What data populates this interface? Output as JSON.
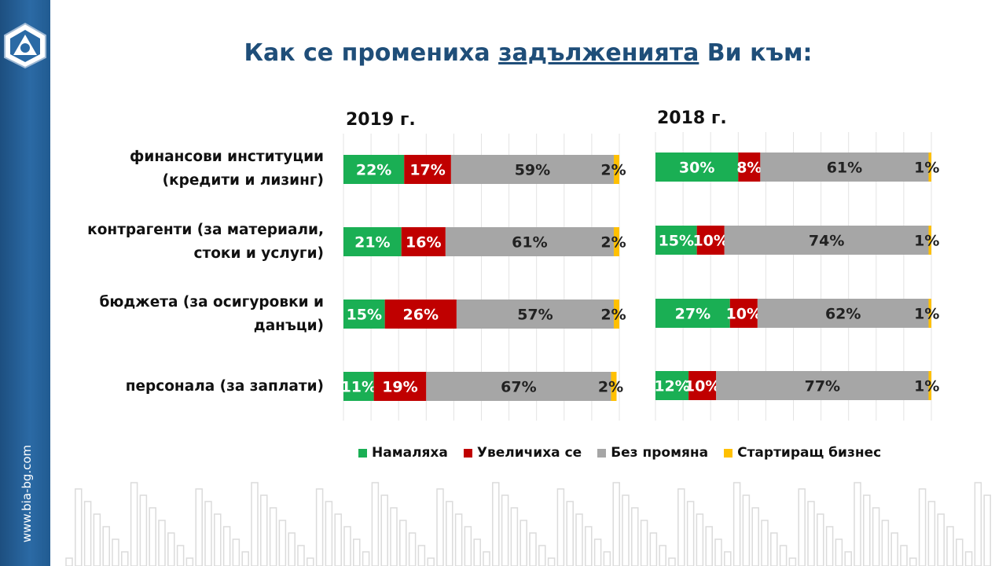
{
  "title": {
    "pre": "Как се промениха ",
    "underlined": "задълженията",
    "post": " Ви към:"
  },
  "site": "www.bia-bg.com",
  "chart_data": [
    {
      "type": "bar",
      "stacked": true,
      "orientation": "horizontal",
      "title": "2019 г.",
      "categories": [
        "финансови институции (кредити и лизинг)",
        "контрагенти (за материали, стоки и услуги)",
        "бюджета (за осигуровки и данъци)",
        "персонала (за заплати)"
      ],
      "series": [
        {
          "name": "Намаляха",
          "color": "#1aaf54",
          "values": [
            22,
            21,
            15,
            11
          ],
          "labels": [
            "22%",
            "21%",
            "15%",
            "11%"
          ]
        },
        {
          "name": "Увеличиха се",
          "color": "#c00000",
          "values": [
            17,
            16,
            26,
            19
          ],
          "labels": [
            "17%",
            "16%",
            "26%",
            "19%"
          ]
        },
        {
          "name": "Без промяна",
          "color": "#a6a6a6",
          "values": [
            59,
            61,
            57,
            67
          ],
          "labels": [
            "59%",
            "61%",
            "57%",
            "67%"
          ]
        },
        {
          "name": "Стартиращ бизнес",
          "color": "#ffc000",
          "values": [
            2,
            2,
            2,
            2
          ],
          "labels": [
            "2%",
            "2%",
            "2%",
            "2%"
          ]
        }
      ],
      "xlim": [
        0,
        100
      ],
      "grid": true
    },
    {
      "type": "bar",
      "stacked": true,
      "orientation": "horizontal",
      "title": "2018 г.",
      "categories": [
        "финансови институции (кредити и лизинг)",
        "контрагенти (за материали, стоки и услуги)",
        "бюджета (за осигуровки и данъци)",
        "персонала (за заплати)"
      ],
      "series": [
        {
          "name": "Намаляха",
          "color": "#1aaf54",
          "values": [
            30,
            15,
            27,
            12
          ],
          "labels": [
            "30%",
            "15%",
            "27%",
            "12%"
          ]
        },
        {
          "name": "Увеличиха се",
          "color": "#c00000",
          "values": [
            8,
            10,
            10,
            10
          ],
          "labels": [
            "8%",
            "10%",
            "10%",
            "10%"
          ]
        },
        {
          "name": "Без промяна",
          "color": "#a6a6a6",
          "values": [
            61,
            74,
            62,
            77
          ],
          "labels": [
            "61%",
            "74%",
            "62%",
            "77%"
          ]
        },
        {
          "name": "Стартиращ бизнес",
          "color": "#ffc000",
          "values": [
            1,
            1,
            1,
            1
          ],
          "labels": [
            "1%",
            "1%",
            "1%",
            "1%"
          ]
        }
      ],
      "xlim": [
        0,
        100
      ],
      "grid": true
    }
  ],
  "category_lines": [
    [
      "финансови институции",
      "(кредити и лизинг)"
    ],
    [
      "контрагенти (за материали,",
      "стоки и услуги)"
    ],
    [
      "бюджета (за осигуровки и",
      "данъци)"
    ],
    [
      "персонала (за заплати)"
    ]
  ],
  "legend": {
    "position": "bottom",
    "items": [
      {
        "label": "Намаляха",
        "color": "#1aaf54"
      },
      {
        "label": "Увеличиха се",
        "color": "#c00000"
      },
      {
        "label": "Без промяна",
        "color": "#a6a6a6"
      },
      {
        "label": "Стартиращ бизнес",
        "color": "#ffc000"
      }
    ]
  }
}
